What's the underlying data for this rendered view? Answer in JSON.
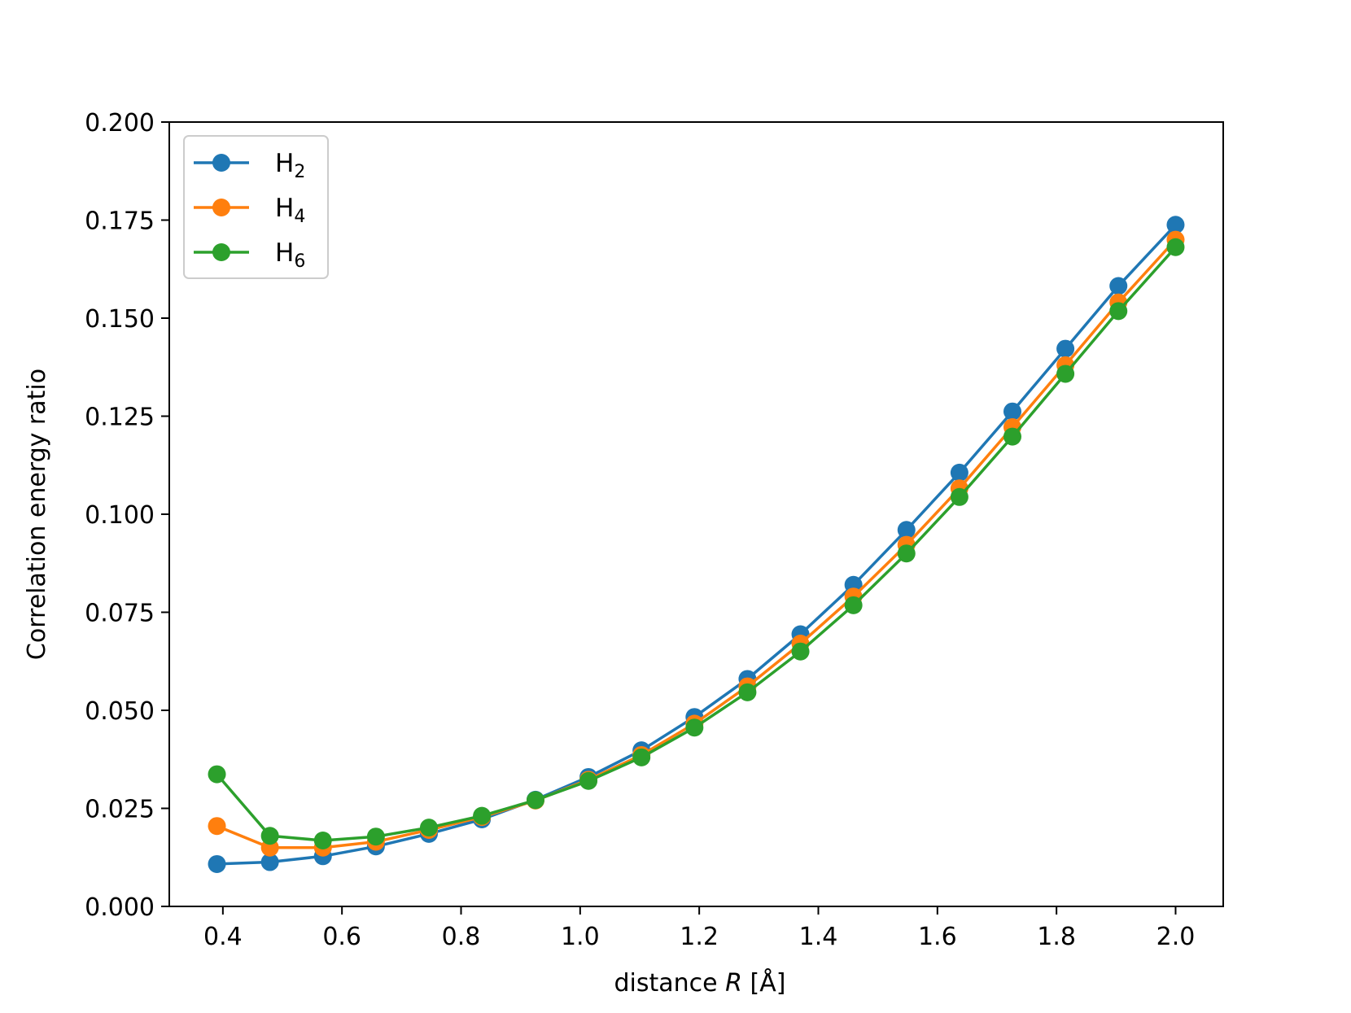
{
  "chart_data": {
    "type": "line",
    "xlabel_prefix": "distance ",
    "xlabel_var": "R",
    "xlabel_suffix": " [Å]",
    "ylabel": "Correlation energy ratio",
    "xlim": [
      0.31,
      2.08
    ],
    "ylim": [
      0.0,
      0.2
    ],
    "xticks": [
      "0.4",
      "0.6",
      "0.8",
      "1.0",
      "1.2",
      "1.4",
      "1.6",
      "1.8",
      "2.0"
    ],
    "yticks": [
      "0.000",
      "0.025",
      "0.050",
      "0.075",
      "0.100",
      "0.125",
      "0.150",
      "0.175",
      "0.200"
    ],
    "grid": false,
    "legend_position": "top-left",
    "x": [
      0.39,
      0.479,
      0.568,
      0.657,
      0.746,
      0.835,
      0.925,
      1.014,
      1.103,
      1.192,
      1.281,
      1.37,
      1.459,
      1.548,
      1.637,
      1.726,
      1.815,
      1.904,
      2.0
    ],
    "series": [
      {
        "name_base": "H",
        "name_sub": "2",
        "color": "#1f77b4",
        "values": [
          0.0108,
          0.0113,
          0.0128,
          0.0153,
          0.0185,
          0.0222,
          0.0272,
          0.033,
          0.0398,
          0.0483,
          0.058,
          0.0694,
          0.082,
          0.096,
          0.1106,
          0.1262,
          0.1422,
          0.1582,
          0.1738
        ]
      },
      {
        "name_base": "H",
        "name_sub": "4",
        "color": "#ff7f0e",
        "values": [
          0.0205,
          0.015,
          0.015,
          0.0165,
          0.0195,
          0.0228,
          0.027,
          0.0323,
          0.0386,
          0.0466,
          0.0561,
          0.067,
          0.079,
          0.0922,
          0.1066,
          0.1222,
          0.138,
          0.154,
          0.17
        ]
      },
      {
        "name_base": "H",
        "name_sub": "6",
        "color": "#2ca02c",
        "values": [
          0.0337,
          0.018,
          0.0168,
          0.0178,
          0.0201,
          0.0231,
          0.0271,
          0.032,
          0.038,
          0.0456,
          0.0546,
          0.065,
          0.0768,
          0.09,
          0.1044,
          0.1198,
          0.1358,
          0.1518,
          0.1681
        ]
      }
    ]
  }
}
